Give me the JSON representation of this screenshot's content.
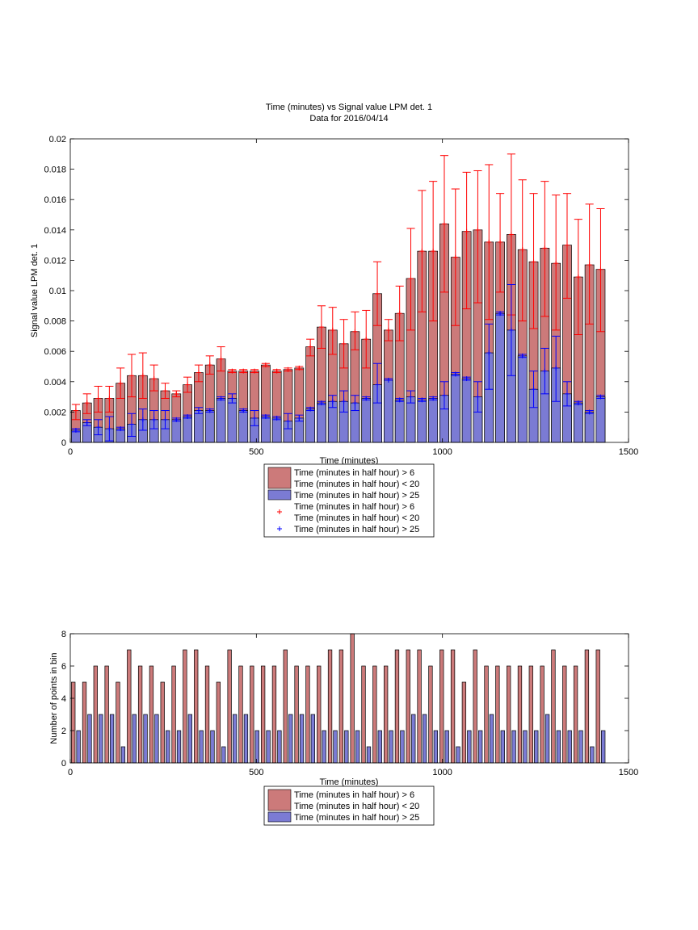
{
  "colors": {
    "bar_a": "#cc7a7a",
    "bar_b": "#7b7bd4",
    "err_a": "#ff0000",
    "err_b": "#0000ff",
    "axis": "#000000"
  },
  "chart_data": [
    {
      "type": "bar",
      "title": "Time (minutes) vs Signal value LPM det. 1",
      "subtitle": "Data for 2016/04/14",
      "xlabel": "Time (minutes)",
      "ylabel": "Signal value LPM det. 1",
      "xlim": [
        0,
        1500
      ],
      "ylim": [
        0,
        0.02
      ],
      "xticks": [
        0,
        500,
        1000,
        1500
      ],
      "yticks": [
        0,
        0.002,
        0.004,
        0.006,
        0.008,
        0.01,
        0.012,
        0.014,
        0.016,
        0.018,
        0.02
      ],
      "ytick_labels": [
        "0",
        "0.002",
        "0.004",
        "0.006",
        "0.008",
        "0.01",
        "0.012",
        "0.014",
        "0.016",
        "0.018",
        "0.02"
      ],
      "x": [
        15,
        45,
        75,
        105,
        135,
        165,
        195,
        225,
        255,
        285,
        315,
        345,
        375,
        405,
        435,
        465,
        495,
        525,
        555,
        585,
        615,
        645,
        675,
        705,
        735,
        765,
        795,
        825,
        855,
        885,
        915,
        945,
        975,
        1005,
        1035,
        1065,
        1095,
        1125,
        1155,
        1185,
        1215,
        1245,
        1275,
        1305,
        1335,
        1365,
        1395,
        1425
      ],
      "series": [
        {
          "name": "Time (minutes in half hour) > 6\nTime (minutes in half hour) < 20",
          "values": [
            0.0021,
            0.0026,
            0.0029,
            0.0029,
            0.0039,
            0.0044,
            0.0044,
            0.0042,
            0.0034,
            0.0032,
            0.0038,
            0.0046,
            0.0051,
            0.0055,
            0.0047,
            0.0047,
            0.0047,
            0.0051,
            0.0047,
            0.0048,
            0.0049,
            0.0063,
            0.0076,
            0.0074,
            0.0065,
            0.0073,
            0.0068,
            0.0098,
            0.0074,
            0.0085,
            0.0108,
            0.0126,
            0.0126,
            0.0144,
            0.0122,
            0.0139,
            0.014,
            0.0132,
            0.0132,
            0.0137,
            0.0127,
            0.0119,
            0.0128,
            0.0118,
            0.013,
            0.0109,
            0.0117,
            0.0114
          ],
          "err_low": [
            0.0015,
            0.0019,
            0.002,
            0.002,
            0.0029,
            0.003,
            0.0029,
            0.0034,
            0.0029,
            0.003,
            0.0033,
            0.004,
            0.0045,
            0.0047,
            0.0046,
            0.0046,
            0.0046,
            0.005,
            0.0046,
            0.0047,
            0.0048,
            0.0057,
            0.0062,
            0.0058,
            0.0049,
            0.0061,
            0.0049,
            0.0077,
            0.0067,
            0.0067,
            0.0074,
            0.0086,
            0.008,
            0.0099,
            0.0077,
            0.0088,
            0.0092,
            0.0081,
            0.0099,
            0.0084,
            0.008,
            0.0075,
            0.0083,
            0.0074,
            0.0095,
            0.0071,
            0.0078,
            0.0073
          ],
          "err_high": [
            0.0025,
            0.0032,
            0.0037,
            0.0037,
            0.0049,
            0.0058,
            0.0059,
            0.0051,
            0.0039,
            0.0034,
            0.0043,
            0.0051,
            0.0057,
            0.0063,
            0.0048,
            0.0048,
            0.0048,
            0.0052,
            0.0048,
            0.0049,
            0.005,
            0.0068,
            0.009,
            0.0089,
            0.0081,
            0.0086,
            0.0087,
            0.0119,
            0.0081,
            0.0103,
            0.0141,
            0.0166,
            0.0172,
            0.0189,
            0.0167,
            0.0178,
            0.0179,
            0.0183,
            0.0164,
            0.019,
            0.0173,
            0.0164,
            0.0172,
            0.0163,
            0.0164,
            0.0147,
            0.0157,
            0.0154
          ]
        },
        {
          "name": "Time (minutes in half hour) > 25",
          "values": [
            0.0008,
            0.0013,
            0.001,
            0.0009,
            0.0009,
            0.0012,
            0.0015,
            0.0015,
            0.0015,
            0.0015,
            0.0017,
            0.0021,
            0.0021,
            0.0029,
            0.0029,
            0.0021,
            0.0016,
            0.0017,
            0.0016,
            0.0014,
            0.0016,
            0.0022,
            0.0026,
            0.0027,
            0.0027,
            0.0026,
            0.0029,
            0.0038,
            0.0041,
            0.0028,
            0.003,
            0.0028,
            0.0029,
            0.0031,
            0.0045,
            0.0042,
            0.003,
            0.0059,
            0.0085,
            0.0074,
            0.0057,
            0.0035,
            0.0047,
            0.0049,
            0.0032,
            0.0026,
            0.002,
            0.003
          ],
          "err_low": [
            0.0007,
            0.0011,
            0.0005,
            0.0001,
            0.0008,
            0.0004,
            0.0008,
            0.0009,
            0.0009,
            0.0014,
            0.0016,
            0.0019,
            0.002,
            0.0028,
            0.0026,
            0.002,
            0.0011,
            0.0016,
            0.0015,
            0.0009,
            0.0014,
            0.0021,
            0.0025,
            0.0023,
            0.002,
            0.0021,
            0.0028,
            0.0026,
            0.0041,
            0.0027,
            0.0026,
            0.0027,
            0.0028,
            0.0022,
            0.0044,
            0.0041,
            0.002,
            0.0035,
            0.0084,
            0.0044,
            0.0056,
            0.0023,
            0.0032,
            0.0027,
            0.0024,
            0.0025,
            0.0019,
            0.0029
          ],
          "err_high": [
            0.0009,
            0.0015,
            0.0015,
            0.0017,
            0.001,
            0.0019,
            0.0022,
            0.0021,
            0.0021,
            0.0016,
            0.0018,
            0.0023,
            0.0022,
            0.003,
            0.0032,
            0.0022,
            0.0021,
            0.0018,
            0.0017,
            0.0019,
            0.0018,
            0.0023,
            0.0027,
            0.0031,
            0.0034,
            0.0031,
            0.003,
            0.0052,
            0.0042,
            0.0029,
            0.0034,
            0.0029,
            0.003,
            0.004,
            0.0046,
            0.0043,
            0.004,
            0.0078,
            0.0086,
            0.0104,
            0.0058,
            0.0047,
            0.0062,
            0.007,
            0.004,
            0.0027,
            0.0021,
            0.0031
          ]
        }
      ],
      "legend": {
        "placement": "below-axes",
        "entries": [
          {
            "kind": "patch",
            "color_key": "bar_a",
            "lines": [
              "Time (minutes in half hour) > 6",
              "Time (minutes in half hour) < 20"
            ]
          },
          {
            "kind": "patch",
            "color_key": "bar_b",
            "lines": [
              "Time (minutes in half hour) > 25"
            ]
          },
          {
            "kind": "marker",
            "marker": "+",
            "color_key": "err_a",
            "lines": [
              "Time (minutes in half hour) > 6",
              "Time (minutes in half hour) < 20"
            ]
          },
          {
            "kind": "marker",
            "marker": "+",
            "color_key": "err_b",
            "lines": [
              "Time (minutes in half hour) > 25"
            ]
          }
        ]
      },
      "grid": false
    },
    {
      "type": "bar",
      "title": "",
      "xlabel": "Time (minutes)",
      "ylabel": "Number of points in bin",
      "xlim": [
        0,
        1500
      ],
      "ylim": [
        0,
        8
      ],
      "xticks": [
        0,
        500,
        1000,
        1500
      ],
      "yticks": [
        0,
        2,
        4,
        6,
        8
      ],
      "ytick_labels": [
        "0",
        "2",
        "4",
        "6",
        "8"
      ],
      "x": [
        15,
        45,
        75,
        105,
        135,
        165,
        195,
        225,
        255,
        285,
        315,
        345,
        375,
        405,
        435,
        465,
        495,
        525,
        555,
        585,
        615,
        645,
        675,
        705,
        735,
        765,
        795,
        825,
        855,
        885,
        915,
        945,
        975,
        1005,
        1035,
        1065,
        1095,
        1125,
        1155,
        1185,
        1215,
        1245,
        1275,
        1305,
        1335,
        1365,
        1395,
        1425
      ],
      "series": [
        {
          "name": "Time (minutes in half hour) > 6\nTime (minutes in half hour) < 20",
          "values": [
            5,
            5,
            6,
            6,
            5,
            7,
            6,
            6,
            5,
            6,
            7,
            7,
            6,
            5,
            7,
            6,
            6,
            6,
            6,
            7,
            6,
            6,
            6,
            7,
            7,
            8,
            6,
            6,
            6,
            7,
            7,
            7,
            6,
            7,
            7,
            5,
            7,
            6,
            6,
            6,
            6,
            6,
            6,
            7,
            6,
            6,
            7,
            7
          ]
        },
        {
          "name": "Time (minutes in half hour) > 25",
          "values": [
            2,
            3,
            3,
            3,
            1,
            3,
            3,
            3,
            2,
            2,
            3,
            2,
            2,
            1,
            3,
            3,
            2,
            2,
            2,
            3,
            3,
            3,
            2,
            2,
            2,
            2,
            1,
            2,
            2,
            2,
            3,
            3,
            2,
            2,
            1,
            2,
            2,
            3,
            2,
            2,
            2,
            2,
            3,
            2,
            2,
            2,
            1,
            2
          ]
        }
      ],
      "legend": {
        "placement": "below-axes",
        "entries": [
          {
            "kind": "patch",
            "color_key": "bar_a",
            "lines": [
              "Time (minutes in half hour) > 6",
              "Time (minutes in half hour) < 20"
            ]
          },
          {
            "kind": "patch",
            "color_key": "bar_b",
            "lines": [
              "Time (minutes in half hour) > 25"
            ]
          }
        ]
      },
      "grid": false
    }
  ]
}
